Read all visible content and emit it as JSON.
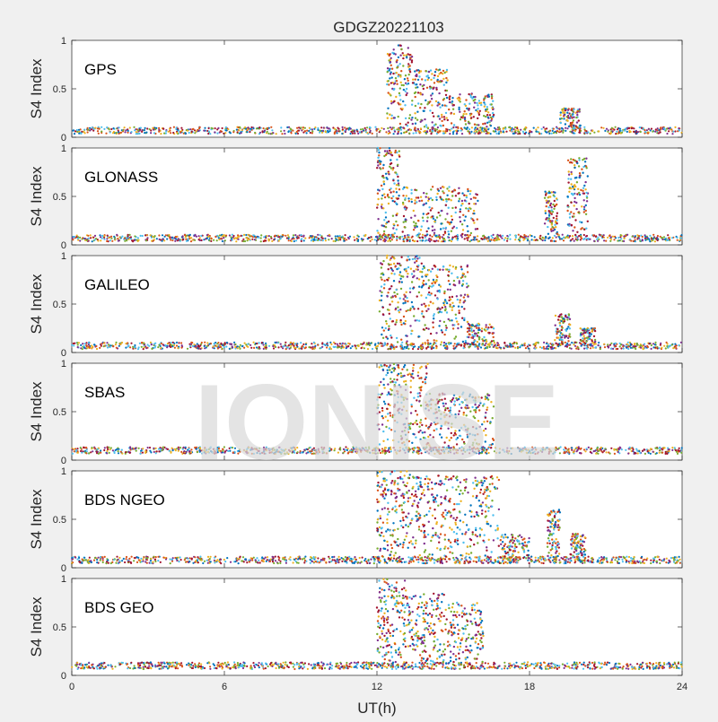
{
  "chart_data": {
    "type": "scatter",
    "title": "GDGZ20221103",
    "xlabel": "UT(h)",
    "ylabel": "S4 Index",
    "xlim": [
      0,
      24
    ],
    "ylim": [
      0,
      1
    ],
    "x_ticks": [
      "0",
      "6",
      "12",
      "18",
      "24"
    ],
    "y_ticks": [
      "0",
      "0.5",
      "1"
    ],
    "watermark": "IONISE",
    "colors": [
      "#0072bd",
      "#d95319",
      "#edb120",
      "#7e2f8e",
      "#77ac30",
      "#4dbeee",
      "#a2142f"
    ],
    "panels": [
      {
        "label": "GPS",
        "baseline": 0.07,
        "bursts": [
          {
            "start": 12.4,
            "end": 13.4,
            "peak": 0.95
          },
          {
            "start": 13.4,
            "end": 14.8,
            "peak": 0.7
          },
          {
            "start": 14.8,
            "end": 16.6,
            "peak": 0.45
          },
          {
            "start": 19.2,
            "end": 20.0,
            "peak": 0.3
          }
        ]
      },
      {
        "label": "GLONASS",
        "baseline": 0.07,
        "bursts": [
          {
            "start": 12.0,
            "end": 12.9,
            "peak": 1.0
          },
          {
            "start": 13.0,
            "end": 16.0,
            "peak": 0.6
          },
          {
            "start": 18.6,
            "end": 19.1,
            "peak": 0.55
          },
          {
            "start": 19.5,
            "end": 20.3,
            "peak": 0.9
          }
        ]
      },
      {
        "label": "GALILEO",
        "baseline": 0.07,
        "bursts": [
          {
            "start": 12.1,
            "end": 13.8,
            "peak": 1.0
          },
          {
            "start": 13.8,
            "end": 15.6,
            "peak": 0.9
          },
          {
            "start": 15.6,
            "end": 16.6,
            "peak": 0.3
          },
          {
            "start": 19.0,
            "end": 19.6,
            "peak": 0.4
          },
          {
            "start": 20.0,
            "end": 20.6,
            "peak": 0.25
          }
        ]
      },
      {
        "label": "SBAS",
        "baseline": 0.1,
        "bursts": [
          {
            "start": 12.0,
            "end": 14.0,
            "peak": 1.0
          },
          {
            "start": 14.0,
            "end": 16.6,
            "peak": 0.7
          }
        ]
      },
      {
        "label": "BDS NGEO",
        "baseline": 0.08,
        "bursts": [
          {
            "start": 12.0,
            "end": 13.3,
            "peak": 1.0
          },
          {
            "start": 13.3,
            "end": 16.8,
            "peak": 0.95
          },
          {
            "start": 16.8,
            "end": 18.0,
            "peak": 0.35
          },
          {
            "start": 18.7,
            "end": 19.2,
            "peak": 0.6
          },
          {
            "start": 19.6,
            "end": 20.2,
            "peak": 0.35
          }
        ]
      },
      {
        "label": "BDS GEO",
        "baseline": 0.1,
        "bursts": [
          {
            "start": 12.0,
            "end": 13.2,
            "peak": 1.0
          },
          {
            "start": 13.2,
            "end": 14.7,
            "peak": 0.85
          },
          {
            "start": 14.7,
            "end": 16.2,
            "peak": 0.75
          }
        ]
      }
    ]
  }
}
